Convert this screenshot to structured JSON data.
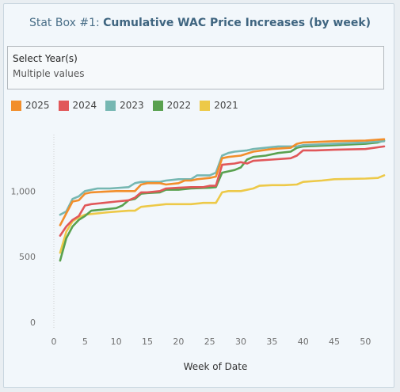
{
  "header": {
    "title_prefix": "Stat Box #1: ",
    "title_main": "Cumulative WAC Price Increases (by week)"
  },
  "filter": {
    "label": "Select Year(s)",
    "value": "Multiple values"
  },
  "chart_data": {
    "type": "line",
    "title": "",
    "xlabel": "Week of Date",
    "ylabel": "",
    "xlim": [
      0,
      53
    ],
    "ylim": [
      0,
      1430
    ],
    "x_ticks": [
      0,
      5,
      10,
      15,
      20,
      25,
      30,
      35,
      40,
      45,
      50
    ],
    "y_ticks": [
      0,
      500,
      1000
    ],
    "y_tick_labels": [
      "0",
      "500",
      "1,000"
    ],
    "grid": false,
    "legend_placement": "top-left",
    "series": [
      {
        "name": "2025",
        "color": "#f28e2b",
        "points": [
          [
            1,
            740
          ],
          [
            2,
            830
          ],
          [
            3,
            920
          ],
          [
            4,
            930
          ],
          [
            5,
            980
          ],
          [
            6,
            990
          ],
          [
            8,
            995
          ],
          [
            10,
            1000
          ],
          [
            13,
            1000
          ],
          [
            14,
            1050
          ],
          [
            15,
            1060
          ],
          [
            17,
            1060
          ],
          [
            18,
            1050
          ],
          [
            20,
            1060
          ],
          [
            21,
            1080
          ],
          [
            22,
            1080
          ],
          [
            23,
            1090
          ],
          [
            25,
            1100
          ],
          [
            26,
            1110
          ],
          [
            27,
            1250
          ],
          [
            28,
            1260
          ],
          [
            30,
            1270
          ],
          [
            32,
            1300
          ],
          [
            35,
            1320
          ],
          [
            38,
            1330
          ],
          [
            39,
            1360
          ],
          [
            40,
            1370
          ],
          [
            45,
            1380
          ],
          [
            50,
            1385
          ],
          [
            53,
            1395
          ]
        ]
      },
      {
        "name": "2024",
        "color": "#e15759",
        "points": [
          [
            1,
            660
          ],
          [
            2,
            730
          ],
          [
            3,
            780
          ],
          [
            4,
            810
          ],
          [
            5,
            890
          ],
          [
            6,
            900
          ],
          [
            8,
            910
          ],
          [
            10,
            920
          ],
          [
            12,
            930
          ],
          [
            13,
            950
          ],
          [
            14,
            990
          ],
          [
            15,
            990
          ],
          [
            17,
            1000
          ],
          [
            18,
            1020
          ],
          [
            20,
            1025
          ],
          [
            22,
            1030
          ],
          [
            24,
            1030
          ],
          [
            25,
            1040
          ],
          [
            26,
            1040
          ],
          [
            27,
            1200
          ],
          [
            29,
            1210
          ],
          [
            30,
            1220
          ],
          [
            31,
            1210
          ],
          [
            32,
            1230
          ],
          [
            35,
            1240
          ],
          [
            38,
            1250
          ],
          [
            39,
            1270
          ],
          [
            40,
            1310
          ],
          [
            42,
            1310
          ],
          [
            45,
            1315
          ],
          [
            50,
            1320
          ],
          [
            53,
            1340
          ]
        ]
      },
      {
        "name": "2023",
        "color": "#76b7b2",
        "points": [
          [
            1,
            820
          ],
          [
            2,
            845
          ],
          [
            3,
            940
          ],
          [
            4,
            960
          ],
          [
            5,
            1000
          ],
          [
            7,
            1020
          ],
          [
            9,
            1020
          ],
          [
            12,
            1030
          ],
          [
            13,
            1060
          ],
          [
            14,
            1070
          ],
          [
            17,
            1070
          ],
          [
            18,
            1080
          ],
          [
            20,
            1090
          ],
          [
            22,
            1090
          ],
          [
            23,
            1120
          ],
          [
            25,
            1120
          ],
          [
            26,
            1140
          ],
          [
            27,
            1270
          ],
          [
            28,
            1290
          ],
          [
            29,
            1300
          ],
          [
            31,
            1310
          ],
          [
            32,
            1320
          ],
          [
            34,
            1330
          ],
          [
            36,
            1340
          ],
          [
            39,
            1340
          ],
          [
            40,
            1350
          ],
          [
            45,
            1360
          ],
          [
            50,
            1370
          ],
          [
            53,
            1380
          ]
        ]
      },
      {
        "name": "2022",
        "color": "#59a14f",
        "points": [
          [
            1,
            470
          ],
          [
            2,
            640
          ],
          [
            3,
            730
          ],
          [
            4,
            780
          ],
          [
            5,
            810
          ],
          [
            6,
            850
          ],
          [
            8,
            860
          ],
          [
            10,
            870
          ],
          [
            11,
            890
          ],
          [
            12,
            930
          ],
          [
            13,
            940
          ],
          [
            14,
            980
          ],
          [
            15,
            985
          ],
          [
            17,
            990
          ],
          [
            18,
            1010
          ],
          [
            20,
            1010
          ],
          [
            22,
            1020
          ],
          [
            25,
            1025
          ],
          [
            26,
            1030
          ],
          [
            27,
            1140
          ],
          [
            28,
            1150
          ],
          [
            29,
            1160
          ],
          [
            30,
            1180
          ],
          [
            31,
            1240
          ],
          [
            32,
            1260
          ],
          [
            34,
            1270
          ],
          [
            36,
            1290
          ],
          [
            38,
            1300
          ],
          [
            39,
            1330
          ],
          [
            40,
            1340
          ],
          [
            45,
            1350
          ],
          [
            50,
            1360
          ],
          [
            52,
            1370
          ],
          [
            53,
            1385
          ]
        ]
      },
      {
        "name": "2021",
        "color": "#edc948",
        "points": [
          [
            1,
            530
          ],
          [
            2,
            690
          ],
          [
            3,
            770
          ],
          [
            4,
            800
          ],
          [
            5,
            820
          ],
          [
            7,
            830
          ],
          [
            9,
            840
          ],
          [
            12,
            850
          ],
          [
            13,
            850
          ],
          [
            14,
            880
          ],
          [
            16,
            890
          ],
          [
            18,
            900
          ],
          [
            20,
            900
          ],
          [
            22,
            900
          ],
          [
            24,
            910
          ],
          [
            26,
            910
          ],
          [
            27,
            990
          ],
          [
            28,
            1000
          ],
          [
            30,
            1000
          ],
          [
            32,
            1020
          ],
          [
            33,
            1040
          ],
          [
            35,
            1045
          ],
          [
            37,
            1045
          ],
          [
            39,
            1050
          ],
          [
            40,
            1070
          ],
          [
            43,
            1080
          ],
          [
            45,
            1090
          ],
          [
            50,
            1095
          ],
          [
            52,
            1100
          ],
          [
            53,
            1120
          ]
        ]
      }
    ]
  }
}
